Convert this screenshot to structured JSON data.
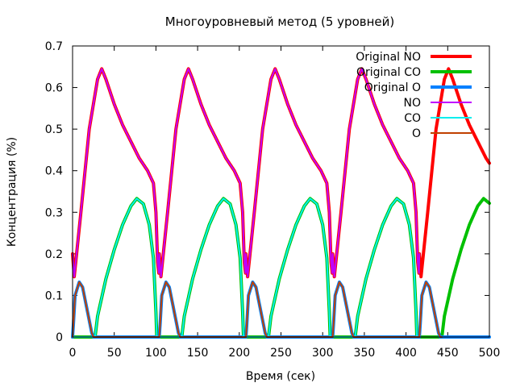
{
  "chart_data": {
    "type": "line",
    "title": "Многоуровневый метод (5 уровней)",
    "xlabel": "Время (сек)",
    "ylabel": "Концентрация (%)",
    "xlim": [
      0,
      500
    ],
    "ylim": [
      0,
      0.7
    ],
    "x_ticks": [
      "0",
      "50",
      "100",
      "150",
      "200",
      "250",
      "300",
      "350",
      "400",
      "450",
      "500"
    ],
    "y_ticks": [
      "0",
      "0.1",
      "0.2",
      "0.3",
      "0.4",
      "0.5",
      "0.6",
      "0.7"
    ],
    "grid": false,
    "legend_position": "top-right",
    "period": 104,
    "series": [
      {
        "name": "Original NO",
        "color": "#ff0000",
        "width": 4,
        "kind": "no",
        "x_end": 500
      },
      {
        "name": "Original CO",
        "color": "#00c000",
        "width": 4,
        "kind": "co",
        "x_end": 500
      },
      {
        "name": "Original O",
        "color": "#0080ff",
        "width": 4,
        "kind": "o",
        "x_end": 500
      },
      {
        "name": "NO",
        "color": "#c000ff",
        "width": 2,
        "kind": "no",
        "x_end": 416
      },
      {
        "name": "CO",
        "color": "#00eeee",
        "width": 2,
        "kind": "co",
        "x_end": 416
      },
      {
        "name": "O",
        "color": "#c04000",
        "width": 2,
        "kind": "o",
        "x_end": 443
      }
    ],
    "cycle_profile": {
      "no": [
        [
          0,
          0.2
        ],
        [
          2,
          0.145
        ],
        [
          10,
          0.3
        ],
        [
          20,
          0.5
        ],
        [
          30,
          0.62
        ],
        [
          35,
          0.645
        ],
        [
          40,
          0.62
        ],
        [
          50,
          0.56
        ],
        [
          60,
          0.51
        ],
        [
          70,
          0.47
        ],
        [
          80,
          0.43
        ],
        [
          90,
          0.4
        ],
        [
          97,
          0.37
        ],
        [
          100,
          0.3
        ],
        [
          102,
          0.18
        ],
        [
          104,
          0.145
        ]
      ],
      "co": [
        [
          0,
          0
        ],
        [
          27,
          0
        ],
        [
          30,
          0.05
        ],
        [
          40,
          0.14
        ],
        [
          50,
          0.21
        ],
        [
          60,
          0.27
        ],
        [
          70,
          0.315
        ],
        [
          77,
          0.333
        ],
        [
          85,
          0.32
        ],
        [
          92,
          0.27
        ],
        [
          97,
          0.19
        ],
        [
          100,
          0.06
        ],
        [
          101,
          0
        ],
        [
          104,
          0
        ]
      ],
      "o": [
        [
          0,
          0
        ],
        [
          1,
          0.03
        ],
        [
          3,
          0.1
        ],
        [
          8,
          0.132
        ],
        [
          12,
          0.12
        ],
        [
          16,
          0.08
        ],
        [
          20,
          0.04
        ],
        [
          23,
          0.01
        ],
        [
          25,
          0
        ],
        [
          104,
          0
        ]
      ]
    }
  }
}
